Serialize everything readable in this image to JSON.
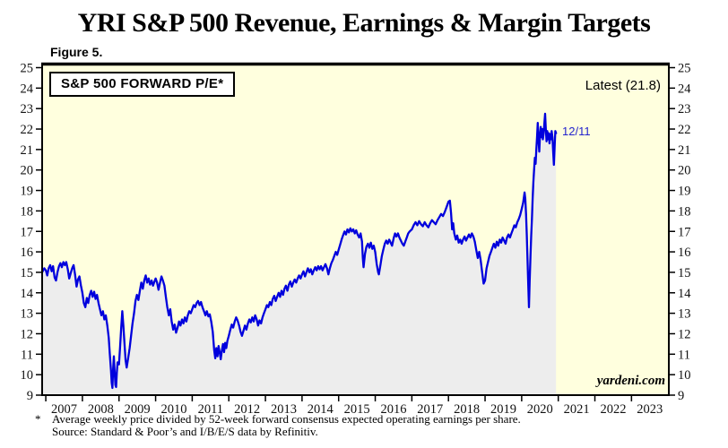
{
  "page": {
    "title": "YRI S&P 500 Revenue, Earnings & Margin Targets",
    "figure_label": "Figure 5.",
    "watermark": "yardeni.com",
    "footnote": {
      "marker": "*",
      "line1": "Average weekly price divided by 52-week forward consensus expected operating earnings per share.",
      "line2": "Source: Standard & Poor’s and I/B/E/S data by Refinitiv."
    }
  },
  "chart": {
    "colors": {
      "line": "#0000dd",
      "area_fill": "#ededed",
      "plot_bg": "#ffffde",
      "axis": "#000000",
      "annotation_blue": "#2323cd",
      "text": "#000000"
    }
  },
  "chart_data": {
    "type": "line",
    "title": "S&P 500 FORWARD P/E*",
    "series_name": "S&P 500 Forward P/E (weekly)",
    "grid": false,
    "legend_position": "top-left-box",
    "xlim": [
      2006.9,
      2024.02
    ],
    "ylim": [
      9,
      25
    ],
    "x_tick_years": [
      2007,
      2008,
      2009,
      2010,
      2011,
      2012,
      2013,
      2014,
      2015,
      2016,
      2017,
      2018,
      2019,
      2020,
      2021,
      2022,
      2023
    ],
    "x_ticklabels": [
      "2007",
      "2008",
      "2009",
      "2010",
      "2011",
      "2012",
      "2013",
      "2014",
      "2015",
      "2016",
      "2017",
      "2018",
      "2019",
      "2020",
      "2021",
      "2022",
      "2023"
    ],
    "y_ticks": [
      9,
      10,
      11,
      12,
      13,
      14,
      15,
      16,
      17,
      18,
      19,
      20,
      21,
      22,
      23,
      24,
      25
    ],
    "annotations": [
      {
        "text": "Latest (21.8)",
        "color": "#000000",
        "position": "top-right"
      },
      {
        "text": "12/11",
        "color": "#2323cd",
        "position": "line-end"
      }
    ],
    "latest_value": 21.8,
    "data_end": "2020-12-11",
    "points": [
      [
        2006.9,
        15.0
      ],
      [
        2006.96,
        15.2
      ],
      [
        2007.0,
        15.1
      ],
      [
        2007.04,
        14.85
      ],
      [
        2007.08,
        15.2
      ],
      [
        2007.12,
        15.35
      ],
      [
        2007.16,
        15.05
      ],
      [
        2007.2,
        15.3
      ],
      [
        2007.24,
        14.75
      ],
      [
        2007.28,
        14.6
      ],
      [
        2007.32,
        15.0
      ],
      [
        2007.36,
        15.3
      ],
      [
        2007.4,
        15.45
      ],
      [
        2007.44,
        15.25
      ],
      [
        2007.48,
        15.5
      ],
      [
        2007.52,
        15.35
      ],
      [
        2007.56,
        15.5
      ],
      [
        2007.6,
        15.15
      ],
      [
        2007.64,
        14.7
      ],
      [
        2007.68,
        14.95
      ],
      [
        2007.72,
        15.2
      ],
      [
        2007.76,
        15.35
      ],
      [
        2007.8,
        14.9
      ],
      [
        2007.84,
        14.3
      ],
      [
        2007.88,
        14.65
      ],
      [
        2007.92,
        14.8
      ],
      [
        2007.96,
        14.35
      ],
      [
        2008.0,
        14.0
      ],
      [
        2008.04,
        13.5
      ],
      [
        2008.08,
        13.3
      ],
      [
        2008.12,
        13.75
      ],
      [
        2008.16,
        13.5
      ],
      [
        2008.2,
        13.9
      ],
      [
        2008.24,
        14.1
      ],
      [
        2008.28,
        13.8
      ],
      [
        2008.32,
        14.05
      ],
      [
        2008.36,
        13.7
      ],
      [
        2008.4,
        13.9
      ],
      [
        2008.44,
        13.5
      ],
      [
        2008.48,
        13.2
      ],
      [
        2008.52,
        12.9
      ],
      [
        2008.56,
        13.1
      ],
      [
        2008.6,
        12.7
      ],
      [
        2008.64,
        12.9
      ],
      [
        2008.68,
        12.4
      ],
      [
        2008.72,
        11.8
      ],
      [
        2008.75,
        11.0
      ],
      [
        2008.78,
        10.2
      ],
      [
        2008.8,
        9.6
      ],
      [
        2008.82,
        9.35
      ],
      [
        2008.84,
        10.3
      ],
      [
        2008.86,
        10.9
      ],
      [
        2008.88,
        10.2
      ],
      [
        2008.9,
        9.5
      ],
      [
        2008.92,
        9.4
      ],
      [
        2008.94,
        10.1
      ],
      [
        2008.96,
        10.6
      ],
      [
        2009.0,
        10.5
      ],
      [
        2009.03,
        11.4
      ],
      [
        2009.06,
        12.3
      ],
      [
        2009.09,
        13.1
      ],
      [
        2009.12,
        12.4
      ],
      [
        2009.15,
        11.5
      ],
      [
        2009.18,
        10.7
      ],
      [
        2009.21,
        10.35
      ],
      [
        2009.25,
        10.8
      ],
      [
        2009.29,
        11.3
      ],
      [
        2009.33,
        11.9
      ],
      [
        2009.37,
        12.5
      ],
      [
        2009.41,
        13.0
      ],
      [
        2009.45,
        13.6
      ],
      [
        2009.49,
        13.9
      ],
      [
        2009.53,
        13.65
      ],
      [
        2009.57,
        14.1
      ],
      [
        2009.61,
        14.5
      ],
      [
        2009.65,
        14.2
      ],
      [
        2009.69,
        14.6
      ],
      [
        2009.73,
        14.85
      ],
      [
        2009.77,
        14.5
      ],
      [
        2009.81,
        14.7
      ],
      [
        2009.85,
        14.4
      ],
      [
        2009.89,
        14.6
      ],
      [
        2009.93,
        14.35
      ],
      [
        2009.97,
        14.55
      ],
      [
        2010.0,
        14.7
      ],
      [
        2010.04,
        14.5
      ],
      [
        2010.08,
        14.15
      ],
      [
        2010.12,
        14.5
      ],
      [
        2010.16,
        14.8
      ],
      [
        2010.2,
        14.6
      ],
      [
        2010.24,
        14.35
      ],
      [
        2010.28,
        13.8
      ],
      [
        2010.32,
        13.3
      ],
      [
        2010.36,
        12.9
      ],
      [
        2010.4,
        13.2
      ],
      [
        2010.44,
        12.6
      ],
      [
        2010.48,
        12.2
      ],
      [
        2010.52,
        12.45
      ],
      [
        2010.56,
        12.05
      ],
      [
        2010.6,
        12.3
      ],
      [
        2010.64,
        12.6
      ],
      [
        2010.68,
        12.4
      ],
      [
        2010.72,
        12.7
      ],
      [
        2010.76,
        12.5
      ],
      [
        2010.8,
        12.8
      ],
      [
        2010.84,
        12.6
      ],
      [
        2010.88,
        12.9
      ],
      [
        2010.92,
        13.1
      ],
      [
        2010.96,
        13.0
      ],
      [
        2011.0,
        13.2
      ],
      [
        2011.04,
        13.4
      ],
      [
        2011.08,
        13.3
      ],
      [
        2011.12,
        13.5
      ],
      [
        2011.16,
        13.6
      ],
      [
        2011.2,
        13.4
      ],
      [
        2011.24,
        13.55
      ],
      [
        2011.28,
        13.3
      ],
      [
        2011.32,
        13.1
      ],
      [
        2011.36,
        12.9
      ],
      [
        2011.4,
        13.1
      ],
      [
        2011.44,
        12.85
      ],
      [
        2011.48,
        12.95
      ],
      [
        2011.52,
        12.6
      ],
      [
        2011.56,
        12.1
      ],
      [
        2011.6,
        11.2
      ],
      [
        2011.63,
        10.8
      ],
      [
        2011.66,
        11.3
      ],
      [
        2011.69,
        10.9
      ],
      [
        2011.72,
        11.4
      ],
      [
        2011.75,
        11.1
      ],
      [
        2011.78,
        10.75
      ],
      [
        2011.81,
        11.2
      ],
      [
        2011.84,
        11.5
      ],
      [
        2011.87,
        11.1
      ],
      [
        2011.9,
        11.55
      ],
      [
        2011.93,
        11.3
      ],
      [
        2011.96,
        11.65
      ],
      [
        2012.0,
        11.9
      ],
      [
        2012.04,
        12.2
      ],
      [
        2012.08,
        12.45
      ],
      [
        2012.12,
        12.3
      ],
      [
        2012.16,
        12.6
      ],
      [
        2012.2,
        12.8
      ],
      [
        2012.24,
        12.65
      ],
      [
        2012.28,
        12.4
      ],
      [
        2012.32,
        12.1
      ],
      [
        2012.36,
        11.9
      ],
      [
        2012.4,
        12.15
      ],
      [
        2012.44,
        12.4
      ],
      [
        2012.48,
        12.2
      ],
      [
        2012.52,
        12.5
      ],
      [
        2012.56,
        12.7
      ],
      [
        2012.6,
        12.55
      ],
      [
        2012.64,
        12.8
      ],
      [
        2012.68,
        12.6
      ],
      [
        2012.72,
        12.9
      ],
      [
        2012.76,
        12.7
      ],
      [
        2012.8,
        12.4
      ],
      [
        2012.84,
        12.65
      ],
      [
        2012.88,
        12.5
      ],
      [
        2012.92,
        12.8
      ],
      [
        2012.96,
        13.0
      ],
      [
        2013.0,
        13.2
      ],
      [
        2013.04,
        13.4
      ],
      [
        2013.08,
        13.3
      ],
      [
        2013.12,
        13.55
      ],
      [
        2013.16,
        13.4
      ],
      [
        2013.2,
        13.7
      ],
      [
        2013.24,
        13.85
      ],
      [
        2013.28,
        13.6
      ],
      [
        2013.32,
        13.8
      ],
      [
        2013.36,
        14.0
      ],
      [
        2013.4,
        13.8
      ],
      [
        2013.44,
        14.1
      ],
      [
        2013.48,
        13.9
      ],
      [
        2013.52,
        14.2
      ],
      [
        2013.56,
        14.35
      ],
      [
        2013.6,
        14.1
      ],
      [
        2013.64,
        14.4
      ],
      [
        2013.68,
        14.55
      ],
      [
        2013.72,
        14.3
      ],
      [
        2013.76,
        14.5
      ],
      [
        2013.8,
        14.65
      ],
      [
        2013.84,
        14.5
      ],
      [
        2013.88,
        14.7
      ],
      [
        2013.92,
        14.85
      ],
      [
        2013.96,
        14.7
      ],
      [
        2014.0,
        14.9
      ],
      [
        2014.04,
        15.05
      ],
      [
        2014.08,
        14.8
      ],
      [
        2014.12,
        15.0
      ],
      [
        2014.16,
        15.2
      ],
      [
        2014.2,
        15.0
      ],
      [
        2014.24,
        15.15
      ],
      [
        2014.28,
        14.9
      ],
      [
        2014.32,
        15.1
      ],
      [
        2014.36,
        15.25
      ],
      [
        2014.4,
        15.1
      ],
      [
        2014.44,
        15.3
      ],
      [
        2014.48,
        15.15
      ],
      [
        2014.52,
        15.3
      ],
      [
        2014.56,
        15.1
      ],
      [
        2014.6,
        15.25
      ],
      [
        2014.64,
        15.4
      ],
      [
        2014.68,
        15.2
      ],
      [
        2014.72,
        14.9
      ],
      [
        2014.76,
        15.2
      ],
      [
        2014.8,
        15.45
      ],
      [
        2014.84,
        15.6
      ],
      [
        2014.88,
        15.8
      ],
      [
        2014.92,
        16.0
      ],
      [
        2014.96,
        15.85
      ],
      [
        2015.0,
        16.1
      ],
      [
        2015.04,
        16.35
      ],
      [
        2015.08,
        16.6
      ],
      [
        2015.12,
        16.8
      ],
      [
        2015.16,
        17.0
      ],
      [
        2015.2,
        16.85
      ],
      [
        2015.24,
        17.1
      ],
      [
        2015.28,
        16.95
      ],
      [
        2015.32,
        17.15
      ],
      [
        2015.36,
        17.0
      ],
      [
        2015.4,
        17.1
      ],
      [
        2015.44,
        16.9
      ],
      [
        2015.48,
        17.05
      ],
      [
        2015.52,
        16.85
      ],
      [
        2015.56,
        16.7
      ],
      [
        2015.6,
        16.9
      ],
      [
        2015.64,
        16.5
      ],
      [
        2015.66,
        15.7
      ],
      [
        2015.68,
        15.25
      ],
      [
        2015.72,
        15.9
      ],
      [
        2015.76,
        16.25
      ],
      [
        2015.8,
        16.4
      ],
      [
        2015.84,
        16.2
      ],
      [
        2015.88,
        16.45
      ],
      [
        2015.92,
        16.15
      ],
      [
        2015.96,
        16.3
      ],
      [
        2016.0,
        16.0
      ],
      [
        2016.04,
        15.4
      ],
      [
        2016.08,
        15.0
      ],
      [
        2016.1,
        14.9
      ],
      [
        2016.14,
        15.35
      ],
      [
        2016.18,
        15.8
      ],
      [
        2016.22,
        16.1
      ],
      [
        2016.26,
        16.4
      ],
      [
        2016.3,
        16.55
      ],
      [
        2016.34,
        16.4
      ],
      [
        2016.38,
        16.6
      ],
      [
        2016.42,
        16.45
      ],
      [
        2016.46,
        16.3
      ],
      [
        2016.5,
        16.65
      ],
      [
        2016.54,
        16.9
      ],
      [
        2016.58,
        16.75
      ],
      [
        2016.62,
        16.9
      ],
      [
        2016.66,
        16.7
      ],
      [
        2016.7,
        16.55
      ],
      [
        2016.74,
        16.4
      ],
      [
        2016.78,
        16.3
      ],
      [
        2016.82,
        16.5
      ],
      [
        2016.86,
        16.7
      ],
      [
        2016.9,
        16.9
      ],
      [
        2016.94,
        17.0
      ],
      [
        2017.0,
        17.1
      ],
      [
        2017.05,
        17.3
      ],
      [
        2017.1,
        17.45
      ],
      [
        2017.15,
        17.3
      ],
      [
        2017.2,
        17.5
      ],
      [
        2017.25,
        17.35
      ],
      [
        2017.3,
        17.25
      ],
      [
        2017.35,
        17.45
      ],
      [
        2017.4,
        17.3
      ],
      [
        2017.45,
        17.2
      ],
      [
        2017.5,
        17.4
      ],
      [
        2017.55,
        17.55
      ],
      [
        2017.6,
        17.45
      ],
      [
        2017.65,
        17.35
      ],
      [
        2017.7,
        17.55
      ],
      [
        2017.75,
        17.7
      ],
      [
        2017.8,
        17.85
      ],
      [
        2017.85,
        17.75
      ],
      [
        2017.9,
        17.95
      ],
      [
        2017.95,
        18.2
      ],
      [
        2018.0,
        18.45
      ],
      [
        2018.04,
        18.5
      ],
      [
        2018.07,
        17.9
      ],
      [
        2018.1,
        17.1
      ],
      [
        2018.13,
        17.4
      ],
      [
        2018.16,
        16.9
      ],
      [
        2018.2,
        16.6
      ],
      [
        2018.24,
        16.8
      ],
      [
        2018.28,
        16.45
      ],
      [
        2018.32,
        16.6
      ],
      [
        2018.36,
        16.4
      ],
      [
        2018.4,
        16.6
      ],
      [
        2018.44,
        16.75
      ],
      [
        2018.48,
        16.55
      ],
      [
        2018.52,
        16.7
      ],
      [
        2018.56,
        16.85
      ],
      [
        2018.6,
        16.7
      ],
      [
        2018.64,
        16.9
      ],
      [
        2018.68,
        16.75
      ],
      [
        2018.72,
        16.5
      ],
      [
        2018.76,
        16.1
      ],
      [
        2018.8,
        15.7
      ],
      [
        2018.84,
        16.0
      ],
      [
        2018.88,
        15.6
      ],
      [
        2018.92,
        15.0
      ],
      [
        2018.96,
        14.45
      ],
      [
        2019.0,
        14.6
      ],
      [
        2019.04,
        15.2
      ],
      [
        2019.08,
        15.5
      ],
      [
        2019.12,
        15.8
      ],
      [
        2019.16,
        16.0
      ],
      [
        2019.2,
        16.2
      ],
      [
        2019.24,
        16.4
      ],
      [
        2019.28,
        16.2
      ],
      [
        2019.32,
        16.5
      ],
      [
        2019.36,
        16.3
      ],
      [
        2019.4,
        16.6
      ],
      [
        2019.44,
        16.45
      ],
      [
        2019.48,
        16.7
      ],
      [
        2019.52,
        16.55
      ],
      [
        2019.56,
        16.4
      ],
      [
        2019.6,
        16.7
      ],
      [
        2019.64,
        16.85
      ],
      [
        2019.68,
        16.7
      ],
      [
        2019.72,
        16.9
      ],
      [
        2019.76,
        17.1
      ],
      [
        2019.8,
        17.3
      ],
      [
        2019.84,
        17.2
      ],
      [
        2019.88,
        17.45
      ],
      [
        2019.92,
        17.6
      ],
      [
        2019.96,
        17.8
      ],
      [
        2020.0,
        18.1
      ],
      [
        2020.04,
        18.4
      ],
      [
        2020.08,
        18.9
      ],
      [
        2020.1,
        18.6
      ],
      [
        2020.12,
        17.8
      ],
      [
        2020.14,
        16.8
      ],
      [
        2020.16,
        15.6
      ],
      [
        2020.18,
        14.4
      ],
      [
        2020.2,
        13.3
      ],
      [
        2020.22,
        14.6
      ],
      [
        2020.24,
        15.8
      ],
      [
        2020.26,
        16.8
      ],
      [
        2020.28,
        17.6
      ],
      [
        2020.3,
        18.6
      ],
      [
        2020.32,
        19.4
      ],
      [
        2020.34,
        20.0
      ],
      [
        2020.36,
        20.6
      ],
      [
        2020.38,
        20.3
      ],
      [
        2020.4,
        21.0
      ],
      [
        2020.42,
        21.6
      ],
      [
        2020.44,
        22.3
      ],
      [
        2020.46,
        21.5
      ],
      [
        2020.48,
        20.9
      ],
      [
        2020.5,
        21.7
      ],
      [
        2020.52,
        22.1
      ],
      [
        2020.54,
        21.6
      ],
      [
        2020.56,
        22.0
      ],
      [
        2020.58,
        21.5
      ],
      [
        2020.6,
        21.8
      ],
      [
        2020.62,
        22.3
      ],
      [
        2020.64,
        22.75
      ],
      [
        2020.66,
        22.0
      ],
      [
        2020.68,
        21.4
      ],
      [
        2020.7,
        21.9
      ],
      [
        2020.72,
        21.5
      ],
      [
        2020.74,
        21.8
      ],
      [
        2020.76,
        21.3
      ],
      [
        2020.78,
        21.75
      ],
      [
        2020.8,
        21.5
      ],
      [
        2020.82,
        21.9
      ],
      [
        2020.84,
        21.6
      ],
      [
        2020.86,
        20.9
      ],
      [
        2020.88,
        20.25
      ],
      [
        2020.9,
        21.1
      ],
      [
        2020.92,
        21.9
      ],
      [
        2020.94,
        21.8
      ]
    ]
  }
}
